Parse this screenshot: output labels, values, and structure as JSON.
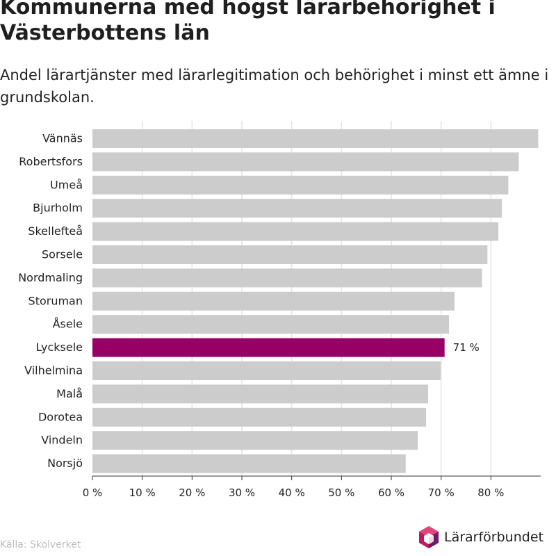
{
  "header": {
    "title": "Kommunerna med högst lärarbehörighet i Västerbottens län",
    "subtitle": "Andel lärartjänster med lärarlegitimation och behörighet i minst ett ämne i grundskolan."
  },
  "footer": {
    "source": "Källa: Skolverket",
    "logo_text": "Lärarförbundet",
    "logo_icon": "hexagon-cube-logo-icon"
  },
  "colors": {
    "bar": "#cccccc",
    "highlight": "#990066",
    "grid": "#e4e4e4",
    "axis": "#333333",
    "text": "#222222",
    "logo_magenta": "#c2185b",
    "logo_purple": "#6a1b6a"
  },
  "chart_data": {
    "type": "bar",
    "orientation": "horizontal",
    "categories": [
      "Vännäs",
      "Robertsfors",
      "Umeå",
      "Bjurholm",
      "Skellefteå",
      "Sorsele",
      "Nordmaling",
      "Storuman",
      "Åsele",
      "Lycksele",
      "Vilhelmina",
      "Malå",
      "Dorotea",
      "Vindeln",
      "Norsjö"
    ],
    "values": [
      89.5,
      85.6,
      83.5,
      82.2,
      81.5,
      79.3,
      78.2,
      72.7,
      71.6,
      70.7,
      69.9,
      67.4,
      67.0,
      65.3,
      62.9
    ],
    "highlight": "Lycksele",
    "highlight_label": "71 %",
    "xlim": [
      0,
      90
    ],
    "xticks": [
      0,
      10,
      20,
      30,
      40,
      50,
      60,
      70,
      80
    ],
    "tick_labels": [
      "0 %",
      "10 %",
      "20 %",
      "30 %",
      "40 %",
      "50 %",
      "60 %",
      "70 %",
      "80 %"
    ],
    "grid": true
  }
}
